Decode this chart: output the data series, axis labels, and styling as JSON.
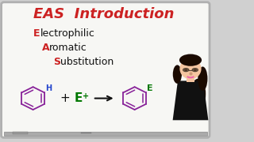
{
  "bg_color": "#d0d0d0",
  "board_color": "#f7f7f4",
  "board_border": "#b0b0b0",
  "title": "EAS  Introduction",
  "title_color": "#cc2222",
  "text_E": "E",
  "text_lectrophilic": "lectrophilic",
  "text_A": "A",
  "text_romatic": "romatic",
  "text_S": "S",
  "text_ubstitution": "ubstitution",
  "red_color": "#cc2222",
  "black_color": "#111111",
  "benzene_color": "#882299",
  "green_color": "#007700",
  "blue_color": "#2244cc",
  "arrow_color": "#111111",
  "plus_color": "#111111",
  "H_color": "#2244cc",
  "E_label_color": "#007700",
  "face_skin": "#f5c5a0",
  "hair_color": "#1a0a00",
  "shirt_color": "#111111",
  "glasses_color": "#554433",
  "lips_color": "#ee66aa"
}
